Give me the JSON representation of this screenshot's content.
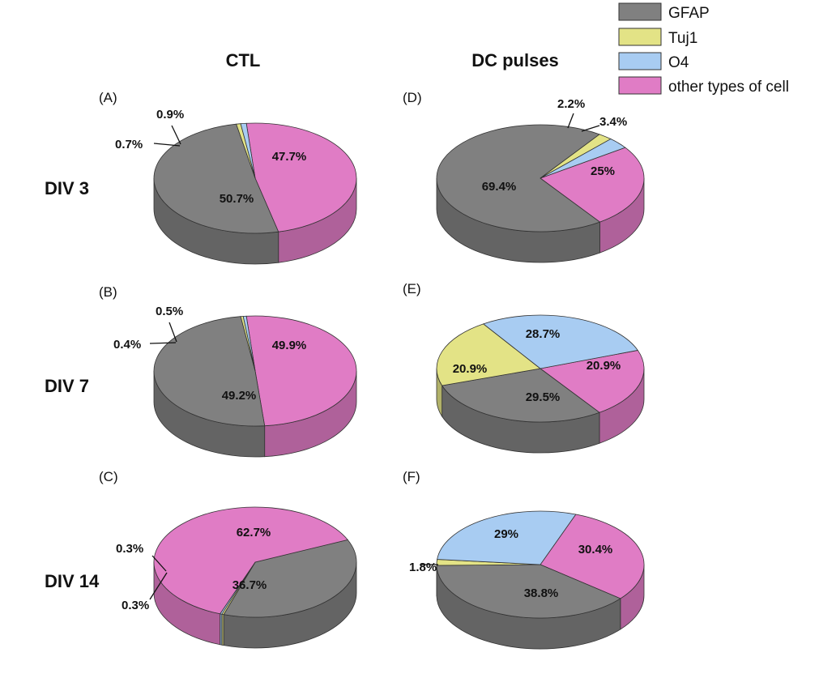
{
  "legend": [
    {
      "label": "GFAP",
      "color": "#808080"
    },
    {
      "label": "Tuj1",
      "color": "#e3e386"
    },
    {
      "label": "O4",
      "color": "#a8ccf2"
    },
    {
      "label": "other types of cell",
      "color": "#e07cc5"
    }
  ],
  "columns": [
    "CTL",
    "DC pulses"
  ],
  "rows": [
    "DIV 3",
    "DIV 7",
    "DIV 14"
  ],
  "chart_data": [
    {
      "type": "pie",
      "panel": "(A)",
      "categories": [
        "GFAP",
        "Tuj1",
        "O4",
        "other types of cell"
      ],
      "values": [
        50.7,
        0.7,
        0.9,
        47.7
      ],
      "labels": [
        "50.7%",
        "0.7%",
        "0.9%",
        "47.7%"
      ]
    },
    {
      "type": "pie",
      "panel": "(B)",
      "categories": [
        "GFAP",
        "Tuj1",
        "O4",
        "other types of cell"
      ],
      "values": [
        49.2,
        0.4,
        0.5,
        49.9
      ],
      "labels": [
        "49.2%",
        "0.4%",
        "0.5%",
        "49.9%"
      ]
    },
    {
      "type": "pie",
      "panel": "(C)",
      "categories": [
        "GFAP",
        "Tuj1",
        "O4",
        "other types of cell"
      ],
      "values": [
        36.7,
        0.3,
        0.3,
        62.7
      ],
      "labels": [
        "36.7%",
        "0.3%",
        "0.3%",
        "62.7%"
      ]
    },
    {
      "type": "pie",
      "panel": "(D)",
      "categories": [
        "GFAP",
        "Tuj1",
        "O4",
        "other types of cell"
      ],
      "values": [
        69.4,
        2.2,
        3.4,
        25
      ],
      "labels": [
        "69.4%",
        "2.2%",
        "3.4%",
        "25%"
      ]
    },
    {
      "type": "pie",
      "panel": "(E)",
      "categories": [
        "GFAP",
        "Tuj1",
        "O4",
        "other types of cell"
      ],
      "values": [
        29.5,
        20.9,
        28.7,
        20.9
      ],
      "labels": [
        "29.5%",
        "20.9%",
        "28.7%",
        "20.9%"
      ]
    },
    {
      "type": "pie",
      "panel": "(F)",
      "categories": [
        "GFAP",
        "Tuj1",
        "O4",
        "other types of cell"
      ],
      "values": [
        38.8,
        1.8,
        29,
        30.4
      ],
      "labels": [
        "38.8%",
        "1.8%",
        "29%",
        "30.4%"
      ]
    }
  ]
}
